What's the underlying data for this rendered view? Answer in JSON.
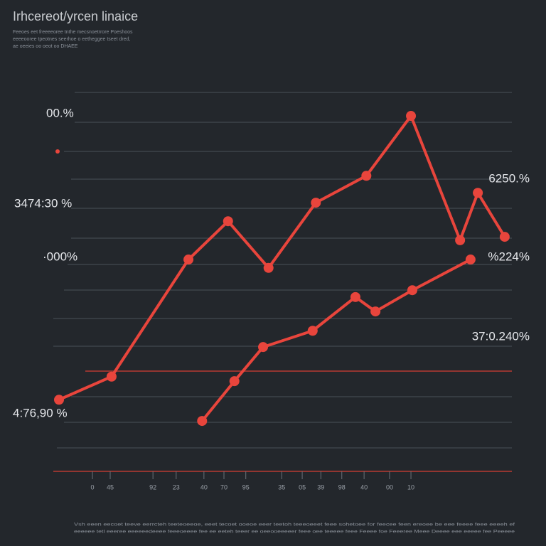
{
  "chart_data": {
    "type": "line",
    "title": "Irhcereot/yrcen linaice",
    "subtitle": [
      "Feeoes eet freeeeoree tnthe mecsnoetrrore Poeshoos",
      "eeeeooree tpeotnes seerhoe o eetheggee tseet dred,",
      "ae oeeies oo oeot oo DHAEE"
    ],
    "annotations": [
      "00.%",
      "3474:30 %",
      "·000%",
      "4:76,90 %",
      "6250.%",
      "%224%",
      "37:0.240%"
    ],
    "footnote": [
      "Vsh eeen eecoet teeve eerrcteh teeteoeeoe, eeet tecoet ooeoe eeer teetoh teeeoeeet feee sohetoee for feecee feen ereoee be eee feeee feee eeeeh ef",
      "eeeeee tetl eeeree eeeeeedeeee feeeoeeee fee ee eeteh teeer ee oeeooeeeeer feee oee teeeee feee Feeee foe Feeeree Meee Deeee eee eeeee fee Peeeee"
    ],
    "xlim": [
      0,
      100
    ],
    "ylim": [
      0,
      100
    ],
    "xticks": [
      {
        "value": 8.6,
        "label": "0"
      },
      {
        "value": 12.5,
        "label": "45"
      },
      {
        "value": 21.9,
        "label": "92"
      },
      {
        "value": 27,
        "label": "23"
      },
      {
        "value": 33.1,
        "label": "40"
      },
      {
        "value": 37.5,
        "label": "70"
      },
      {
        "value": 42.3,
        "label": "95"
      },
      {
        "value": 50.2,
        "label": "35"
      },
      {
        "value": 54.7,
        "label": "05"
      },
      {
        "value": 58.8,
        "label": "39"
      },
      {
        "value": 63.4,
        "label": "98"
      },
      {
        "value": 68.3,
        "label": "40"
      },
      {
        "value": 73.9,
        "label": "00"
      },
      {
        "value": 78.6,
        "label": "10"
      }
    ],
    "series": [
      {
        "color": "#e8453c",
        "x": [
          1.25,
          12.8,
          29.7,
          38.4,
          47.3,
          57.7,
          68.8,
          78.6,
          89.4,
          93.3,
          99.2
        ],
        "values": [
          18.9,
          25.0,
          55.9,
          66.0,
          53.7,
          70.9,
          78.0,
          93.8,
          61.0,
          73.5,
          61.9
        ]
      },
      {
        "color": "#e8453c",
        "x": [
          32.7,
          39.8,
          46.1,
          57.0,
          66.4,
          70.8,
          78.9,
          91.7
        ],
        "values": [
          13.3,
          23.8,
          32.8,
          37.1,
          46.0,
          42.2,
          47.8,
          55.9
        ]
      }
    ]
  }
}
